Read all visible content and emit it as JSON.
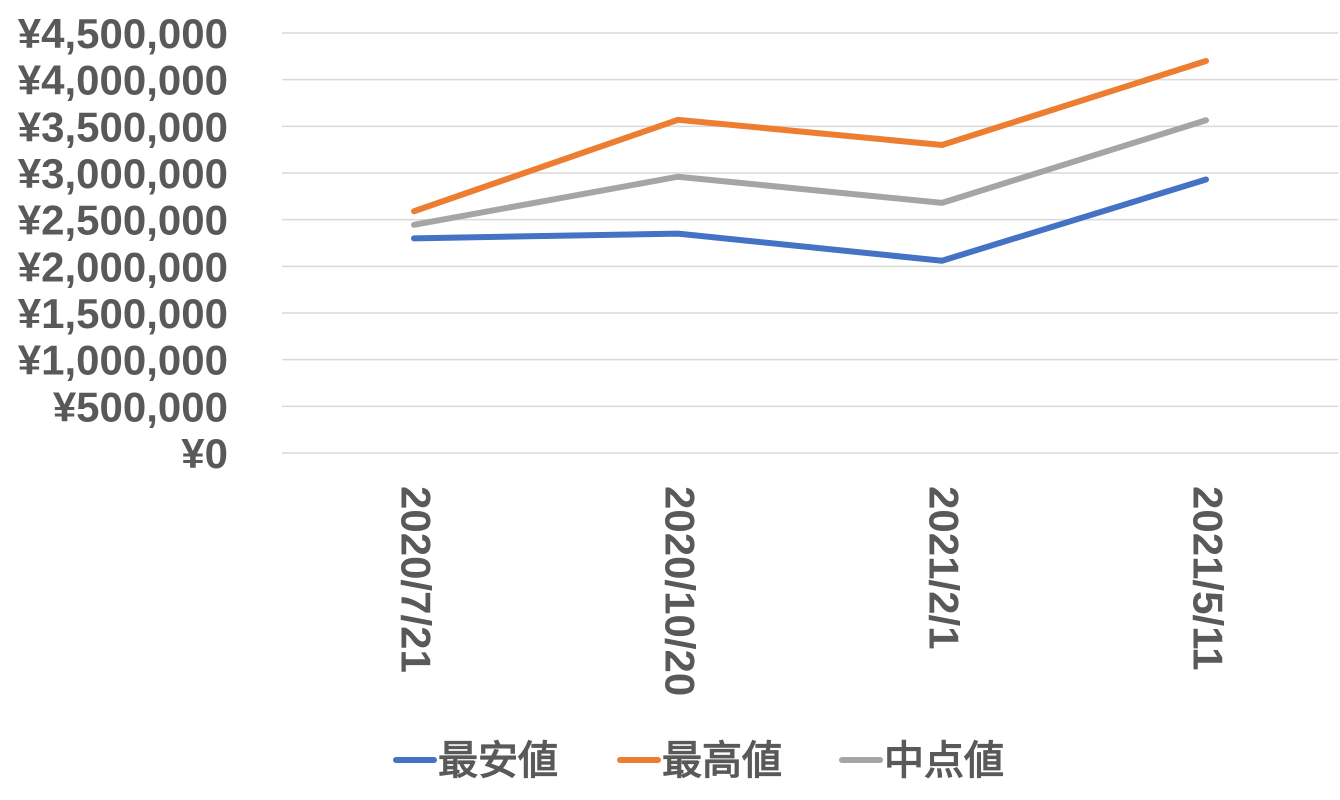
{
  "chart_data": {
    "type": "line",
    "title": "",
    "xlabel": "",
    "ylabel": "",
    "categories": [
      "2020/7/21",
      "2020/10/20",
      "2021/2/1",
      "2021/5/11"
    ],
    "series": [
      {
        "name": "最安値",
        "color": "#4472C4",
        "values": [
          2300000,
          2350000,
          2060000,
          2930000
        ]
      },
      {
        "name": "最高値",
        "color": "#ED7D31",
        "values": [
          2590000,
          3570000,
          3300000,
          4200000
        ]
      },
      {
        "name": "中点値",
        "color": "#A5A5A5",
        "values": [
          2445000,
          2960000,
          2680000,
          3565000
        ]
      }
    ],
    "ylim": [
      0,
      4500000
    ],
    "yticks": [
      0,
      500000,
      1000000,
      1500000,
      2000000,
      2500000,
      3000000,
      3500000,
      4000000,
      4500000
    ],
    "ytick_labels": [
      "¥0",
      "¥500,000",
      "¥1,000,000",
      "¥1,500,000",
      "¥2,000,000",
      "¥2,500,000",
      "¥3,000,000",
      "¥3,500,000",
      "¥4,000,000",
      "¥4,500,000"
    ],
    "grid": true,
    "legend": "bottom"
  }
}
